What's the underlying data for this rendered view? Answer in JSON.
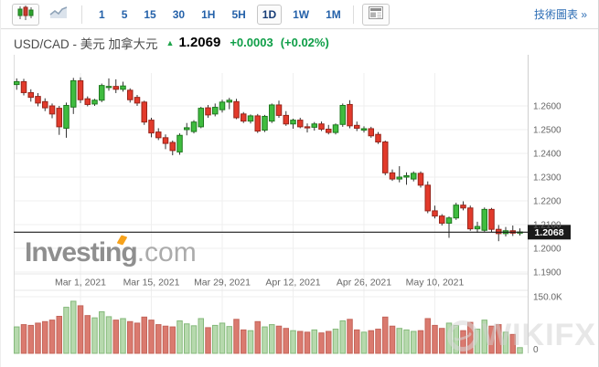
{
  "toolbar": {
    "chart_type": {
      "candlestick_selected": true,
      "line_selected": false
    },
    "periods": [
      "1",
      "5",
      "15",
      "30",
      "1H",
      "5H",
      "1D",
      "1W",
      "1M"
    ],
    "active_period": "1D",
    "link_label": "技術圖表 »"
  },
  "title": {
    "instrument": "USD/CAD - 美元 加拿大元",
    "arrow": "▲",
    "price": "1.2069",
    "change": "+0.0003",
    "change_pct": "(+0.02%)"
  },
  "watermarks": {
    "investing": "Investing",
    "investing_suffix": ".com",
    "wikifx": "WIKIFX"
  },
  "colors": {
    "candle_up_fill": "#3fbc3f",
    "candle_up_stroke": "#1e7a1e",
    "candle_down_fill": "#e23a2b",
    "candle_down_stroke": "#99241a",
    "wick": "#333333",
    "vol_up_fill": "#b6d9ad",
    "vol_up_stroke": "#85b97b",
    "vol_down_fill": "#da7a6f",
    "vol_down_stroke": "#c4655a",
    "grid": "#efefef",
    "axis_text": "#666666",
    "accent_green": "#0e9e47",
    "price_line": "#1a1a1a",
    "link_blue": "#2e6eb5"
  },
  "chart_data": {
    "type": "candlestick+volume",
    "symbol": "USD/CAD",
    "y_axis": {
      "ticks": [
        "1.2600",
        "1.2500",
        "1.2400",
        "1.2300",
        "1.2200",
        "1.2100",
        "1.2000",
        "1.1900"
      ],
      "tick_values": [
        1.26,
        1.25,
        1.24,
        1.23,
        1.22,
        1.21,
        1.2,
        1.19
      ]
    },
    "x_axis": {
      "labels": [
        "Mar 1, 2021",
        "Mar 15, 2021",
        "Mar 29, 2021",
        "Apr 12, 2021",
        "Apr 26, 2021",
        "May 10, 2021"
      ],
      "label_candle_indices": [
        9,
        19,
        29,
        39,
        49,
        59
      ]
    },
    "current_price": {
      "label": "1.2068",
      "value": 1.2068
    },
    "volume_axis": {
      "max_label": "150.0K",
      "min_label": "0",
      "max": 150
    },
    "candles_ohlc": [
      [
        1.269,
        1.2716,
        1.2668,
        1.2702
      ],
      [
        1.2702,
        1.2714,
        1.2644,
        1.2656
      ],
      [
        1.2656,
        1.267,
        1.2618,
        1.2636
      ],
      [
        1.264,
        1.2654,
        1.2598,
        1.2612
      ],
      [
        1.2618,
        1.2632,
        1.2578,
        1.2592
      ],
      [
        1.26,
        1.261,
        1.2548,
        1.2566
      ],
      [
        1.259,
        1.26,
        1.2478,
        1.2512
      ],
      [
        1.2506,
        1.2614,
        1.2466,
        1.2602
      ],
      [
        1.2595,
        1.2718,
        1.2566,
        1.2706
      ],
      [
        1.2706,
        1.272,
        1.2612,
        1.2626
      ],
      [
        1.263,
        1.264,
        1.2598,
        1.2606
      ],
      [
        1.2608,
        1.263,
        1.26,
        1.2624
      ],
      [
        1.2624,
        1.2694,
        1.2616,
        1.2686
      ],
      [
        1.2678,
        1.2716,
        1.2664,
        1.2682
      ],
      [
        1.2682,
        1.2712,
        1.2654,
        1.267
      ],
      [
        1.267,
        1.2702,
        1.266,
        1.2684
      ],
      [
        1.2666,
        1.2674,
        1.2614,
        1.2626
      ],
      [
        1.2636,
        1.2646,
        1.26,
        1.2612
      ],
      [
        1.2616,
        1.2622,
        1.252,
        1.2532
      ],
      [
        1.254,
        1.255,
        1.2468,
        1.2486
      ],
      [
        1.249,
        1.2506,
        1.2456,
        1.2466
      ],
      [
        1.2466,
        1.248,
        1.2418,
        1.2442
      ],
      [
        1.2446,
        1.2454,
        1.2392,
        1.2412
      ],
      [
        1.2406,
        1.2484,
        1.2394,
        1.2476
      ],
      [
        1.25,
        1.2528,
        1.2476,
        1.2508
      ],
      [
        1.2492,
        1.254,
        1.2484,
        1.2532
      ],
      [
        1.2512,
        1.2596,
        1.2506,
        1.259
      ],
      [
        1.2592,
        1.2604,
        1.255,
        1.2562
      ],
      [
        1.2566,
        1.261,
        1.2556,
        1.2594
      ],
      [
        1.2584,
        1.2626,
        1.2572,
        1.2616
      ],
      [
        1.2616,
        1.2634,
        1.2586,
        1.2624
      ],
      [
        1.2618,
        1.263,
        1.2544,
        1.255
      ],
      [
        1.2566,
        1.2574,
        1.2528,
        1.2536
      ],
      [
        1.2536,
        1.2564,
        1.2526,
        1.2558
      ],
      [
        1.2558,
        1.2566,
        1.2486,
        1.2494
      ],
      [
        1.2498,
        1.2562,
        1.249,
        1.2556
      ],
      [
        1.2536,
        1.261,
        1.2528,
        1.2604
      ],
      [
        1.2604,
        1.2622,
        1.255,
        1.256
      ],
      [
        1.256,
        1.2578,
        1.2516,
        1.2524
      ],
      [
        1.2524,
        1.2546,
        1.2504,
        1.254
      ],
      [
        1.254,
        1.255,
        1.2506,
        1.2512
      ],
      [
        1.2512,
        1.2526,
        1.2488,
        1.251
      ],
      [
        1.251,
        1.2532,
        1.2496,
        1.2524
      ],
      [
        1.2524,
        1.2534,
        1.2494,
        1.2502
      ],
      [
        1.2502,
        1.252,
        1.248,
        1.2488
      ],
      [
        1.2488,
        1.2526,
        1.248,
        1.252
      ],
      [
        1.2522,
        1.261,
        1.2512,
        1.2602
      ],
      [
        1.2606,
        1.2624,
        1.2506,
        1.2516
      ],
      [
        1.2518,
        1.2534,
        1.2494,
        1.2506
      ],
      [
        1.2498,
        1.2514,
        1.2488,
        1.2504
      ],
      [
        1.2504,
        1.2512,
        1.2466,
        1.2474
      ],
      [
        1.248,
        1.249,
        1.244,
        1.2448
      ],
      [
        1.2448,
        1.2454,
        1.2308,
        1.2318
      ],
      [
        1.2318,
        1.2332,
        1.2284,
        1.2292
      ],
      [
        1.2292,
        1.2346,
        1.2278,
        1.23
      ],
      [
        1.23,
        1.232,
        1.2268,
        1.2306
      ],
      [
        1.2292,
        1.2324,
        1.2282,
        1.2316
      ],
      [
        1.2316,
        1.2324,
        1.2256,
        1.2266
      ],
      [
        1.2266,
        1.2282,
        1.2148,
        1.2158
      ],
      [
        1.2158,
        1.218,
        1.2126,
        1.2136
      ],
      [
        1.2136,
        1.2144,
        1.2096,
        1.2106
      ],
      [
        1.2106,
        1.2134,
        1.2044,
        1.2128
      ],
      [
        1.2128,
        1.2192,
        1.212,
        1.2182
      ],
      [
        1.2182,
        1.2198,
        1.216,
        1.217
      ],
      [
        1.217,
        1.218,
        1.2074,
        1.2082
      ],
      [
        1.2082,
        1.2112,
        1.2066,
        1.2092
      ],
      [
        1.2076,
        1.2172,
        1.207,
        1.2164
      ],
      [
        1.2164,
        1.217,
        1.2068,
        1.208
      ],
      [
        1.208,
        1.2098,
        1.203,
        1.2062
      ],
      [
        1.2062,
        1.209,
        1.205,
        1.2074
      ],
      [
        1.2074,
        1.2096,
        1.2052,
        1.2064
      ],
      [
        1.2064,
        1.2084,
        1.2054,
        1.2069
      ]
    ],
    "volumes_k": [
      70,
      76,
      74,
      80,
      84,
      88,
      98,
      122,
      138,
      126,
      100,
      94,
      110,
      97,
      88,
      92,
      84,
      80,
      96,
      88,
      76,
      72,
      70,
      86,
      78,
      73,
      92,
      68,
      74,
      80,
      71,
      90,
      62,
      60,
      84,
      70,
      76,
      72,
      66,
      60,
      58,
      56,
      62,
      54,
      58,
      64,
      86,
      90,
      62,
      56,
      60,
      64,
      96,
      72,
      66,
      62,
      58,
      60,
      92,
      74,
      66,
      80,
      74,
      60,
      82,
      64,
      88,
      72,
      76,
      56,
      50,
      15
    ]
  }
}
